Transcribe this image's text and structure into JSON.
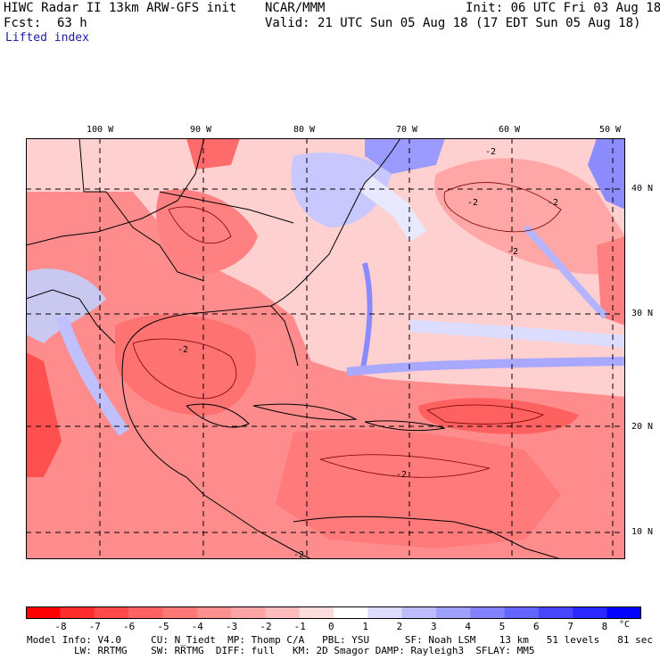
{
  "header": {
    "title": "HIWC Radar II 13km ARW-GFS init",
    "org": "NCAR/MMM",
    "init": "Init: 06 UTC Fri 03 Aug 18",
    "fcst_label": "Fcst:",
    "fcst_value": "63 h",
    "valid": "Valid: 21 UTC Sun 05 Aug 18 (17 EDT Sun 05 Aug 18)",
    "field": "Lifted index"
  },
  "map": {
    "lon_labels": [
      "100 W",
      "90 W",
      "80 W",
      "70 W",
      "60 W",
      "50 W"
    ],
    "lat_labels": [
      "40 N",
      "30 N",
      "20 N",
      "10 N"
    ],
    "contour_labels": [
      "-2",
      "-2",
      "-2",
      "-2",
      "-2",
      "-2",
      "-2"
    ]
  },
  "colorbar": {
    "ticks": [
      "-8",
      "-7",
      "-6",
      "-5",
      "-4",
      "-3",
      "-2",
      "-1",
      "0",
      "1",
      "2",
      "3",
      "4",
      "5",
      "6",
      "7",
      "8"
    ],
    "unit": "°C",
    "colors": [
      "#ff0000",
      "#ff2d2d",
      "#ff4a4a",
      "#ff6262",
      "#ff7878",
      "#ff8e8e",
      "#ffa5a5",
      "#ffbcbc",
      "#ffdcdc",
      "#ffffff",
      "#dcdcff",
      "#bcbcff",
      "#a0a0ff",
      "#8282ff",
      "#6464ff",
      "#4646ff",
      "#2828ff",
      "#0000ff"
    ]
  },
  "footer": {
    "line1": "Model Info: V4.0     CU: N_Tiedt  MP: Thomp C/A   PBL: YSU      SF: Noah LSM    13 km   51 levels   81 sec",
    "line2": "        LW: RRTMG    SW: RRTMG  DIFF: full   KM: 2D Smagor DAMP: Rayleigh3  SFLAY: MM5"
  }
}
